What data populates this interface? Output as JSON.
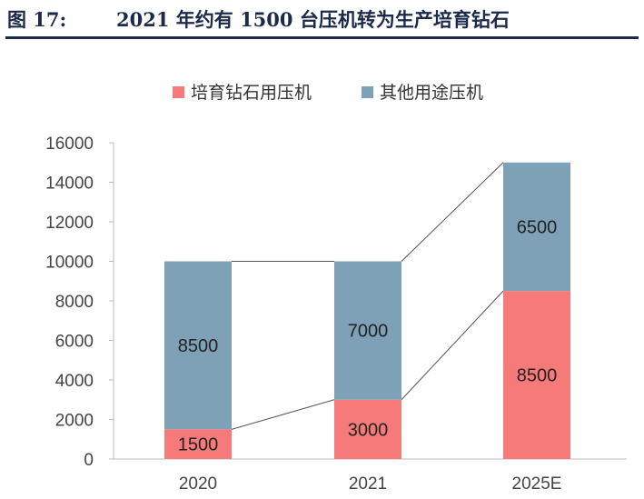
{
  "header": {
    "figure_number": "图 17:",
    "title": "2021 年约有 1500 台压机转为生产培育钻石"
  },
  "colors": {
    "lab_diamond": "#f77a7a",
    "other": "#7fa1b8",
    "header": "#1b2a4a"
  },
  "chart_data": {
    "type": "bar",
    "stacked": true,
    "categories": [
      "2020",
      "2021",
      "2025E"
    ],
    "series": [
      {
        "name": "培育钻石用压机",
        "values": [
          1500,
          3000,
          8500
        ]
      },
      {
        "name": "其他用途压机",
        "values": [
          8500,
          7000,
          6500
        ]
      }
    ],
    "yticks": [
      "0",
      "2000",
      "4000",
      "6000",
      "8000",
      "10000",
      "12000",
      "14000",
      "16000"
    ],
    "ylim": [
      0,
      16000
    ],
    "legend_position": "top-center",
    "grid": false,
    "connector_lines": true
  }
}
